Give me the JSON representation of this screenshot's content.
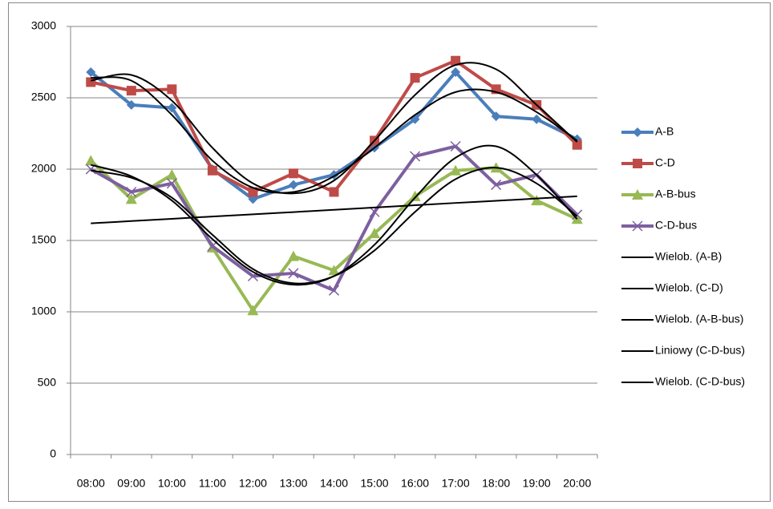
{
  "chart_data": {
    "type": "line",
    "categories": [
      "08:00",
      "09:00",
      "10:00",
      "11:00",
      "12:00",
      "13:00",
      "14:00",
      "15:00",
      "16:00",
      "17:00",
      "18:00",
      "19:00",
      "20:00"
    ],
    "ylim": [
      0,
      3000
    ],
    "yticks": [
      0,
      500,
      1000,
      1500,
      2000,
      2500,
      3000
    ],
    "grid": true,
    "legend": "right",
    "series": [
      {
        "name": "A-B",
        "color": "#4a7ebb",
        "marker": "diamond",
        "values": [
          2680,
          2450,
          2430,
          2000,
          1790,
          1890,
          1960,
          2150,
          2350,
          2680,
          2370,
          2350,
          2210
        ]
      },
      {
        "name": "C-D",
        "color": "#be4b48",
        "marker": "square",
        "values": [
          2610,
          2550,
          2560,
          1990,
          1840,
          1970,
          1840,
          2200,
          2640,
          2760,
          2560,
          2450,
          2170
        ]
      },
      {
        "name": "A-B-bus",
        "color": "#98b954",
        "marker": "triangle",
        "values": [
          2060,
          1790,
          1960,
          1450,
          1010,
          1390,
          1290,
          1550,
          1810,
          1990,
          2010,
          1780,
          1650
        ]
      },
      {
        "name": "C-D-bus",
        "color": "#7d60a0",
        "marker": "x",
        "values": [
          2000,
          1840,
          1900,
          1460,
          1250,
          1270,
          1150,
          1700,
          2090,
          2160,
          1890,
          1960,
          1680
        ]
      },
      {
        "name": "Wielob. (A-B)",
        "color": "#000000",
        "smooth": true,
        "values": [
          2640,
          2620,
          2380,
          2060,
          1870,
          1840,
          1950,
          2150,
          2380,
          2540,
          2540,
          2400,
          2200
        ]
      },
      {
        "name": "Wielob. (C-D)",
        "color": "#000000",
        "smooth": true,
        "values": [
          2620,
          2660,
          2480,
          2150,
          1900,
          1830,
          1920,
          2200,
          2520,
          2730,
          2700,
          2450,
          2190
        ]
      },
      {
        "name": "Wielob. (A-B-bus)",
        "color": "#000000",
        "smooth": true,
        "values": [
          1990,
          1940,
          1800,
          1540,
          1300,
          1200,
          1250,
          1430,
          1700,
          1930,
          2010,
          1900,
          1670
        ]
      },
      {
        "name": "Liniowy (C-D-bus)",
        "color": "#000000",
        "smooth": true,
        "values": [
          1620,
          1636,
          1652,
          1668,
          1683,
          1699,
          1715,
          1731,
          1747,
          1763,
          1778,
          1794,
          1810
        ]
      },
      {
        "name": "Wielob. (C-D-bus)",
        "color": "#000000",
        "smooth": true,
        "values": [
          2030,
          1950,
          1780,
          1510,
          1280,
          1190,
          1250,
          1470,
          1800,
          2080,
          2160,
          1960,
          1650
        ]
      }
    ]
  }
}
